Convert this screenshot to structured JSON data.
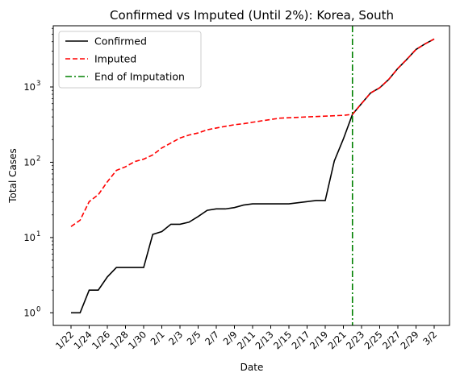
{
  "chart_data": {
    "type": "line",
    "title": "Confirmed vs Imputed (Until 2%): Korea, South",
    "xlabel": "Date",
    "ylabel": "Total Cases",
    "yscale": "log",
    "ylim": [
      0.68,
      6500
    ],
    "y_ticks": [
      {
        "value": 1,
        "base": "10",
        "exp": "0"
      },
      {
        "value": 10,
        "base": "10",
        "exp": "1"
      },
      {
        "value": 100,
        "base": "10",
        "exp": "2"
      },
      {
        "value": 1000,
        "base": "10",
        "exp": "3"
      }
    ],
    "x": [
      "1/22",
      "1/23",
      "1/24",
      "1/25",
      "1/26",
      "1/27",
      "1/28",
      "1/29",
      "1/30",
      "1/31",
      "2/1",
      "2/2",
      "2/3",
      "2/4",
      "2/5",
      "2/6",
      "2/7",
      "2/8",
      "2/9",
      "2/10",
      "2/11",
      "2/12",
      "2/13",
      "2/14",
      "2/15",
      "2/16",
      "2/17",
      "2/18",
      "2/19",
      "2/20",
      "2/21",
      "2/22",
      "2/23",
      "2/24",
      "2/25",
      "2/26",
      "2/27",
      "2/28",
      "2/29",
      "3/1",
      "3/2"
    ],
    "x_tick_labels": [
      "1/22",
      "1/24",
      "1/26",
      "1/28",
      "1/30",
      "2/1",
      "2/3",
      "2/5",
      "2/7",
      "2/9",
      "2/11",
      "2/13",
      "2/15",
      "2/17",
      "2/19",
      "2/21",
      "2/23",
      "2/25",
      "2/27",
      "2/29",
      "3/2"
    ],
    "series": [
      {
        "name": "Confirmed",
        "color": "#000000",
        "dash": "solid",
        "values": [
          1,
          1,
          2,
          2,
          3,
          4,
          4,
          4,
          4,
          11,
          12,
          15,
          15,
          16,
          19,
          23,
          24,
          24,
          25,
          27,
          28,
          28,
          28,
          28,
          28,
          29,
          30,
          31,
          31,
          104,
          204,
          433,
          602,
          833,
          977,
          1261,
          1766,
          2337,
          3150,
          3736,
          4335
        ]
      },
      {
        "name": "Imputed",
        "color": "#ff0000",
        "dash": "dashed",
        "values": [
          14,
          17,
          30,
          37,
          55,
          78,
          87,
          102,
          110,
          125,
          155,
          180,
          210,
          230,
          245,
          270,
          285,
          300,
          315,
          325,
          340,
          355,
          370,
          385,
          390,
          395,
          400,
          405,
          410,
          415,
          420,
          433,
          602,
          833,
          977,
          1261,
          1766,
          2337,
          3150,
          3736,
          4335
        ]
      }
    ],
    "vline": {
      "name": "End of Imputation",
      "x": "2/22",
      "color": "#008000",
      "dash": "dashdot"
    },
    "legend": {
      "position": "top-left",
      "entries": [
        "Confirmed",
        "Imputed",
        "End of Imputation"
      ]
    }
  }
}
